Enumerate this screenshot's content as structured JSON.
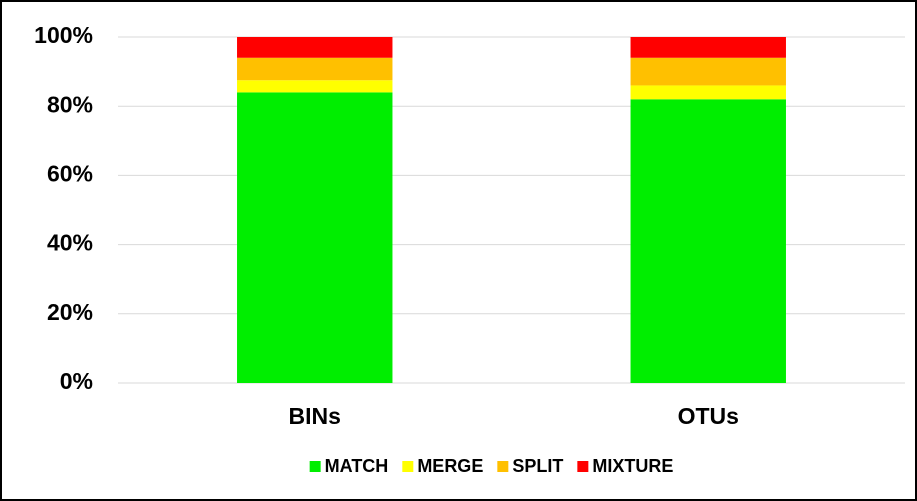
{
  "chart_data": {
    "type": "stacked_bar",
    "categories": [
      "BINs",
      "OTUs"
    ],
    "series": [
      {
        "name": "MATCH",
        "color": "#00ee00",
        "values": [
          84,
          82
        ]
      },
      {
        "name": "MERGE",
        "color": "#ffff00",
        "values": [
          3.5,
          4
        ]
      },
      {
        "name": "SPLIT",
        "color": "#ffc000",
        "values": [
          6.5,
          8
        ]
      },
      {
        "name": "MIXTURE",
        "color": "#ff0000",
        "values": [
          6,
          6
        ]
      }
    ],
    "ylim": [
      0,
      100
    ],
    "yticks": [
      {
        "value": 0,
        "label": "0%"
      },
      {
        "value": 20,
        "label": "20%"
      },
      {
        "value": 40,
        "label": "40%"
      },
      {
        "value": 60,
        "label": "60%"
      },
      {
        "value": 80,
        "label": "80%"
      },
      {
        "value": 100,
        "label": "100%"
      }
    ],
    "grid": true,
    "legend": "bottom"
  }
}
